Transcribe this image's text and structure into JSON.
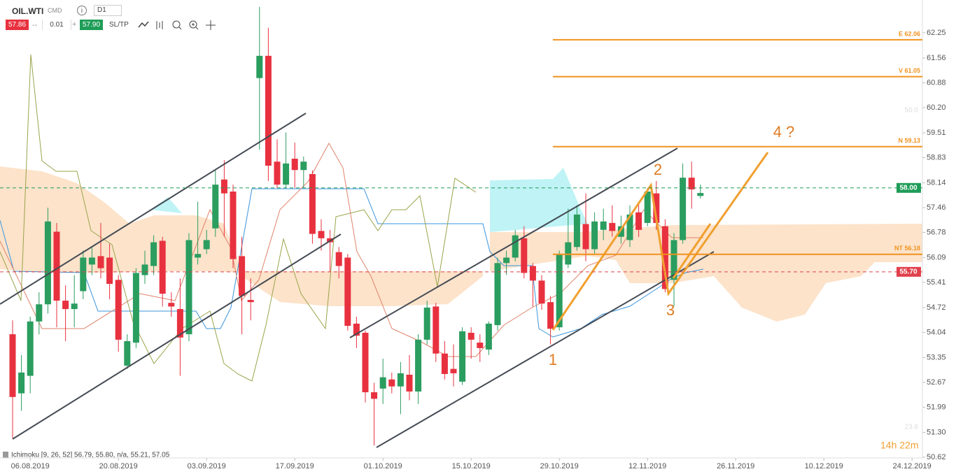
{
  "toolbar": {
    "symbol": "OIL.WTI",
    "market": "CMD",
    "interval": "D1",
    "bid": "57.86",
    "step": "0.01",
    "ask": "57.90",
    "sltp": "SL/TP"
  },
  "indicator_label": "Ichimoku [9, 26, 52] 56.79, 55.80, n/a, 55.21, 57.05",
  "timer": "14h 22m",
  "chart_data": {
    "type": "candlestick",
    "categories": [
      null,
      null,
      "06.08.2019",
      null,
      null,
      null,
      null,
      null,
      null,
      null,
      null,
      null,
      "20.08.2019",
      null,
      null,
      null,
      null,
      null,
      null,
      null,
      null,
      null,
      "03.09.2019",
      null,
      null,
      null,
      null,
      null,
      null,
      null,
      null,
      null,
      "17.09.2019",
      null,
      null,
      null,
      null,
      null,
      null,
      null,
      null,
      null,
      "01.10.2019",
      null,
      null,
      null,
      null,
      null,
      null,
      null,
      null,
      null,
      "15.10.2019",
      null,
      null,
      null,
      null,
      null,
      null,
      null,
      null,
      null,
      "29.10.2019",
      null,
      null,
      null,
      null,
      null,
      null,
      null,
      null,
      null,
      "12.11.2019",
      null,
      null,
      null,
      null,
      null,
      null,
      null,
      null,
      null,
      "26.11.2019",
      null,
      null,
      null,
      null,
      null,
      null,
      null,
      null,
      null,
      "10.12.2019",
      null,
      null,
      null,
      null,
      null,
      null,
      null,
      null,
      null,
      "24.12.2019",
      null
    ],
    "open": [
      53.99,
      52.37,
      52.85,
      54.34,
      54.81,
      56.8,
      54.91,
      54.68,
      55.17,
      55.9,
      56.13,
      56.09,
      55.48,
      53.13,
      53.76,
      55.61,
      55.86,
      56.55,
      54.85,
      54.68,
      53.99,
      56.09,
      56.32,
      56.89,
      58.23,
      57.9,
      56.13,
      54.93,
      61.01,
      61.62,
      58.72,
      58.09,
      58.8,
      58.49,
      58.38,
      56.82,
      56.62,
      56.24,
      56.09,
      54.28,
      54.03,
      52.4,
      52.5,
      52.75,
      52.56,
      52.88,
      52.42,
      53.84,
      54.75,
      53.46,
      53.04,
      52.69,
      54.03,
      53.76,
      53.57,
      54.24,
      55.94,
      56.09,
      56.62,
      55.86,
      55.46,
      54.87,
      54.18,
      55.9,
      56.38,
      57.01,
      56.32,
      56.85,
      57.04,
      56.66,
      56.57,
      57.33,
      57.04,
      57.85,
      56.95,
      55.48,
      56.57,
      58.28,
      57.78,
      null,
      null,
      null,
      null,
      null,
      null,
      null,
      null,
      null,
      null,
      null,
      null,
      null,
      null,
      null,
      null,
      null,
      null,
      null,
      null,
      null,
      null,
      null,
      null,
      null
    ],
    "high": [
      54.37,
      53.42,
      54.47,
      55.14,
      57.46,
      57.04,
      55.33,
      55.61,
      56.28,
      56.38,
      57.04,
      56.47,
      55.61,
      53.99,
      55.8,
      56.28,
      56.7,
      56.66,
      55.14,
      55.52,
      56.76,
      57.62,
      56.85,
      58.48,
      58.76,
      58.09,
      56.66,
      55.52,
      62.96,
      62.39,
      59.33,
      59.52,
      59.24,
      58.86,
      58.48,
      57.14,
      56.85,
      56.38,
      56.19,
      54.47,
      54.09,
      52.66,
      53.32,
      52.94,
      53.23,
      53.42,
      53.99,
      54.91,
      54.85,
      53.8,
      53.71,
      54.18,
      54.18,
      53.99,
      54.34,
      56.09,
      56.28,
      56.85,
      56.95,
      55.94,
      55.61,
      55.04,
      56.28,
      57.43,
      57.52,
      57.85,
      57.33,
      57.43,
      57.52,
      57.24,
      57.52,
      57.62,
      58.0,
      58.19,
      57.14,
      56.76,
      58.67,
      58.72,
      58.09,
      null,
      null,
      null,
      null,
      null,
      null,
      null,
      null,
      null,
      null,
      null,
      null,
      null,
      null,
      null,
      null,
      null,
      null,
      null,
      null,
      null,
      null,
      null,
      null,
      null
    ],
    "low": [
      51.13,
      51.89,
      52.37,
      53.99,
      54.56,
      54.18,
      53.8,
      54.18,
      54.95,
      55.61,
      55.52,
      54.95,
      53.51,
      53.04,
      53.61,
      55.37,
      55.61,
      54.75,
      54.47,
      52.85,
      53.8,
      55.9,
      56.19,
      56.66,
      56.66,
      55.8,
      53.99,
      54.37,
      59.05,
      58.19,
      58.0,
      58.0,
      58.0,
      58.0,
      56.47,
      56.28,
      55.71,
      55.52,
      54.09,
      53.61,
      52.12,
      50.94,
      52.08,
      52.37,
      51.8,
      52.18,
      52.08,
      53.71,
      53.23,
      52.75,
      52.56,
      52.6,
      53.32,
      53.23,
      53.42,
      54.09,
      55.61,
      55.99,
      55.52,
      54.75,
      54.66,
      53.71,
      54.09,
      55.8,
      56.28,
      55.99,
      56.19,
      56.57,
      56.66,
      56.47,
      56.38,
      56.66,
      56.95,
      56.85,
      55.14,
      54.75,
      56.47,
      57.43,
      57.71,
      null,
      null,
      null,
      null,
      null,
      null,
      null,
      null,
      null,
      null,
      null,
      null,
      null,
      null,
      null,
      null,
      null,
      null,
      null,
      null,
      null,
      null,
      null,
      null,
      null
    ],
    "close": [
      52.27,
      52.94,
      54.34,
      54.81,
      57.08,
      54.91,
      54.68,
      54.83,
      56.09,
      56.09,
      55.8,
      55.37,
      53.84,
      53.8,
      55.67,
      55.9,
      56.51,
      55.1,
      54.75,
      53.9,
      56.57,
      56.19,
      56.57,
      58.09,
      57.85,
      56.05,
      55.04,
      54.87,
      61.62,
      58.61,
      58.09,
      58.67,
      58.49,
      58.72,
      56.74,
      56.62,
      56.51,
      55.86,
      54.22,
      53.95,
      52.4,
      52.22,
      52.81,
      52.56,
      52.92,
      52.42,
      53.84,
      54.72,
      53.46,
      52.9,
      52.92,
      54.07,
      53.84,
      53.61,
      54.28,
      55.94,
      56.09,
      56.7,
      55.67,
      55.46,
      54.83,
      54.14,
      56.19,
      56.51,
      57.27,
      56.32,
      57.08,
      57.08,
      56.82,
      56.95,
      57.27,
      56.85,
      57.9,
      57.04,
      55.23,
      56.57,
      58.28,
      57.96,
      57.86,
      null,
      null,
      null,
      null,
      null,
      null,
      null,
      null,
      null,
      null,
      null,
      null,
      null,
      null,
      null,
      null,
      null,
      null,
      null,
      null,
      null,
      null,
      null,
      null,
      null
    ],
    "up_color": "#2a9d5f",
    "down_color": "#e8313f",
    "ylim": [
      50.6,
      63.15
    ],
    "yticks": [
      62.25,
      61.56,
      60.88,
      {
        "value": 60.2,
        "label": "60.20"
      },
      59.51,
      58.83,
      58.14,
      57.46,
      56.78,
      56.09,
      55.41,
      54.72,
      54.04,
      53.35,
      52.67,
      51.99,
      {
        "value": 51.3,
        "label": "51.30"
      },
      50.62
    ],
    "levels": [
      {
        "label": "E 62.06",
        "value": 62.06
      },
      {
        "label": "V 61.05",
        "value": 61.05
      },
      {
        "label": "N 59.13",
        "value": 59.13
      },
      {
        "label": "NT 56.18",
        "value": 56.18
      }
    ],
    "level_color": "#f0921e",
    "price_lines": [
      {
        "label": "58.00",
        "value": 58.0,
        "color": "#1f9d58"
      },
      {
        "label": "55.70",
        "value": 55.7,
        "color": "#e0404c"
      }
    ],
    "fib_labels": [
      "50.0",
      "23.6"
    ],
    "annotations": [
      "1",
      "2",
      "3",
      "4 ?"
    ]
  }
}
